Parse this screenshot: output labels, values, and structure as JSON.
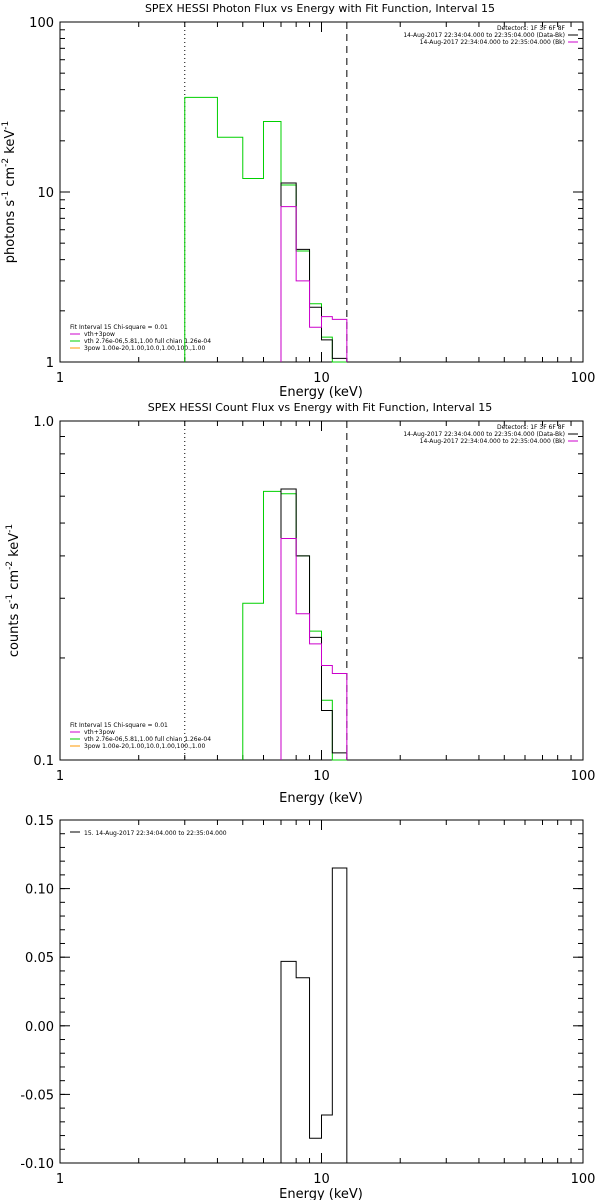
{
  "colors": {
    "black": "#000000",
    "green": "#00d000",
    "magenta": "#cc00cc",
    "orange": "#ff9900"
  },
  "chart_data": [
    {
      "type": "line",
      "title": "SPEX HESSI Photon Flux vs Energy with Fit Function, Interval 15",
      "xlabel": "Energy (keV)",
      "ylabel_parts": [
        "photons s",
        "-1",
        " cm",
        "-2",
        " keV",
        "-1"
      ],
      "xscale": "log",
      "yscale": "log",
      "xlim": [
        1,
        100
      ],
      "ylim": [
        1,
        100
      ],
      "xticks": [
        {
          "v": 1,
          "l": "1"
        },
        {
          "v": 10,
          "l": "10"
        },
        {
          "v": 100,
          "l": "100"
        }
      ],
      "yticks": [
        {
          "v": 1,
          "l": "1"
        },
        {
          "v": 10,
          "l": "10"
        },
        {
          "v": 100,
          "l": "100"
        }
      ],
      "legend_top": [
        "Detectors: 1F 3F 6F 8F",
        "14-Aug-2017 22:34:04.000 to 22:35:04.000 (Data-Bk)",
        "14-Aug-2017 22:34:04.000 to 22:35:04.000 (Bk)"
      ],
      "legend_bottom": [
        {
          "text": "Fit Interval 15   Chi-square = 0.01",
          "color": "none"
        },
        {
          "text": "vth+3pow",
          "color": "magenta"
        },
        {
          "text": "vth 2.76e-06,5.81,1.00  full chian 1.26e-04",
          "color": "green"
        },
        {
          "text": "3pow 1.00e-20,1.00,10.0,1.00,100.,1.00",
          "color": "orange"
        }
      ],
      "vlines": [
        {
          "x": 3.0,
          "style": "dotted"
        },
        {
          "x": 12.5,
          "style": "dashed"
        }
      ],
      "series": [
        {
          "color": "green",
          "edges": [
            3,
            4,
            5,
            6,
            7,
            8,
            9,
            10,
            11,
            12.5
          ],
          "values": [
            36,
            21,
            12,
            26,
            11,
            4.5,
            2.2,
            1.4,
            1.0
          ]
        },
        {
          "color": "black",
          "edges": [
            7,
            8,
            9,
            10,
            11,
            12.5
          ],
          "values": [
            11.3,
            4.6,
            2.1,
            1.35,
            1.05
          ]
        },
        {
          "color": "magenta",
          "edges": [
            7,
            8,
            9,
            10,
            11,
            12.5
          ],
          "values": [
            8.2,
            3.0,
            1.6,
            1.85,
            1.78
          ]
        }
      ]
    },
    {
      "type": "line",
      "title": "SPEX HESSI Count Flux vs Energy with Fit Function, Interval 15",
      "xlabel": "Energy (keV)",
      "ylabel_parts": [
        "counts s",
        "-1",
        " cm",
        "-2",
        " keV",
        "-1"
      ],
      "xscale": "log",
      "yscale": "log",
      "xlim": [
        1,
        100
      ],
      "ylim": [
        0.1,
        1.0
      ],
      "xticks": [
        {
          "v": 1,
          "l": "1"
        },
        {
          "v": 10,
          "l": "10"
        },
        {
          "v": 100,
          "l": "100"
        }
      ],
      "yticks": [
        {
          "v": 0.1,
          "l": "0.1"
        },
        {
          "v": 1.0,
          "l": "1.0"
        }
      ],
      "legend_top": [
        "Detectors: 1F 3F 6F 8F",
        "14-Aug-2017 22:34:04.000 to 22:35:04.000 (Data-Bk)",
        "14-Aug-2017 22:34:04.000 to 22:35:04.000 (Bk)"
      ],
      "legend_bottom": [
        {
          "text": "Fit Interval 15   Chi-square = 0.01",
          "color": "none"
        },
        {
          "text": "vth+3pow",
          "color": "magenta"
        },
        {
          "text": "vth 2.76e-06,5.81,1.00  full chian 1.26e-04",
          "color": "green"
        },
        {
          "text": "3pow 1.00e-20,1.00,10.0,1.00,100.,1.00",
          "color": "orange"
        }
      ],
      "vlines": [
        {
          "x": 3.0,
          "style": "dotted"
        },
        {
          "x": 12.5,
          "style": "dashed"
        }
      ],
      "series": [
        {
          "color": "green",
          "edges": [
            5,
            6,
            7,
            8,
            9,
            10,
            11,
            12.5
          ],
          "values": [
            0.29,
            0.62,
            0.61,
            0.4,
            0.24,
            0.15,
            0.1
          ]
        },
        {
          "color": "black",
          "edges": [
            7,
            8,
            9,
            10,
            11,
            12.5
          ],
          "values": [
            0.63,
            0.4,
            0.23,
            0.14,
            0.105
          ]
        },
        {
          "color": "magenta",
          "edges": [
            7,
            8,
            9,
            10,
            11,
            12.5
          ],
          "values": [
            0.45,
            0.27,
            0.22,
            0.19,
            0.18
          ]
        }
      ]
    },
    {
      "type": "line",
      "title": "",
      "xlabel": "Energy (keV)",
      "xscale": "log",
      "yscale": "linear",
      "xlim": [
        1,
        100
      ],
      "ylim": [
        -0.1,
        0.15
      ],
      "xticks": [
        {
          "v": 1,
          "l": "1"
        },
        {
          "v": 10,
          "l": "10"
        },
        {
          "v": 100,
          "l": "100"
        }
      ],
      "yticks": [
        {
          "v": 0.15,
          "l": "0.15"
        },
        {
          "v": 0.1,
          "l": "0.10"
        },
        {
          "v": 0.05,
          "l": "0.05"
        },
        {
          "v": 0.0,
          "l": "0.00"
        },
        {
          "v": -0.05,
          "l": "-0.05"
        },
        {
          "v": -0.1,
          "l": "-0.10"
        }
      ],
      "legend_top": [
        "15. 14-Aug-2017 22:34:04.000 to 22:35:04.000"
      ],
      "series": [
        {
          "color": "black",
          "edges": [
            7,
            8,
            9,
            10,
            11,
            12.5
          ],
          "values": [
            0.047,
            0.035,
            -0.082,
            -0.065,
            0.115
          ]
        }
      ]
    }
  ]
}
